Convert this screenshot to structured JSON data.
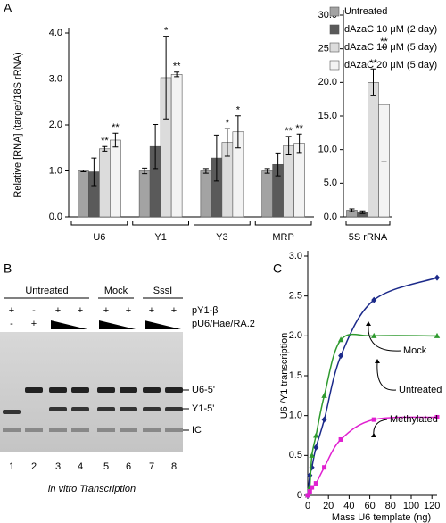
{
  "panel_labels": [
    "A",
    "B",
    "C"
  ],
  "chart_data": [
    {
      "type": "bar",
      "y_label": "Relative [RNA] (target/18S rRNA)",
      "categories": [
        "U6",
        "Y1",
        "Y3",
        "MRP"
      ],
      "ylim": [
        0,
        4.0
      ],
      "yticks": [
        {
          "value": 0,
          "label": "0.0"
        },
        {
          "value": 1,
          "label": "1.0"
        },
        {
          "value": 2,
          "label": "2.0"
        },
        {
          "value": 3,
          "label": "3.0"
        },
        {
          "value": 4,
          "label": "4.0"
        }
      ],
      "series": [
        {
          "name": "Untreated",
          "color": "#a3a3a3",
          "values": [
            1.0,
            1.0,
            1.0,
            1.0
          ],
          "errors": [
            0.02,
            0.06,
            0.05,
            0.05
          ]
        },
        {
          "name": "dAzaC 10 μM (2 day)",
          "color": "#5a5a5a",
          "values": [
            0.98,
            1.53,
            1.28,
            1.14
          ],
          "errors": [
            0.3,
            0.48,
            0.5,
            0.25
          ]
        },
        {
          "name": "dAzaC 10 μM (5 day)",
          "color": "#dcdcdc",
          "values": [
            1.48,
            3.03,
            1.62,
            1.55
          ],
          "errors": [
            0.05,
            0.9,
            0.3,
            0.2
          ],
          "annotations": [
            "**",
            "*",
            "*",
            "**"
          ]
        },
        {
          "name": "dAzaC 20 μM (5 day)",
          "color": "#f3f3f3",
          "values": [
            1.67,
            3.1,
            1.85,
            1.6
          ],
          "errors": [
            0.15,
            0.05,
            0.35,
            0.2
          ],
          "annotations": [
            "**",
            "**",
            "*",
            "**"
          ]
        }
      ]
    },
    {
      "type": "bar",
      "categories": [
        "5S rRNA"
      ],
      "ylim": [
        0,
        30.0
      ],
      "yticks": [
        {
          "value": 0,
          "label": "0.0"
        },
        {
          "value": 5,
          "label": "5.0"
        },
        {
          "value": 10,
          "label": "10.0"
        },
        {
          "value": 15,
          "label": "15.0"
        },
        {
          "value": 20,
          "label": "20.0"
        },
        {
          "value": 25,
          "label": "25.0"
        },
        {
          "value": 30,
          "label": "30.0"
        }
      ],
      "series": [
        {
          "color": "#a3a3a3",
          "values": [
            1.0
          ],
          "errors": [
            0.2
          ]
        },
        {
          "color": "#5a5a5a",
          "values": [
            0.7
          ],
          "errors": [
            0.2
          ]
        },
        {
          "color": "#dcdcdc",
          "values": [
            20.0
          ],
          "errors": [
            2.0
          ],
          "annotations": [
            "**"
          ]
        },
        {
          "color": "#f3f3f3",
          "values": [
            16.7
          ],
          "errors": [
            8.5
          ],
          "annotations": [
            "**"
          ]
        }
      ]
    },
    {
      "type": "line",
      "x_label": "Mass U6 template (ng)",
      "y_label": "U6 /Y1 transcription",
      "x": [
        0,
        2,
        4,
        8,
        16,
        32,
        64,
        125
      ],
      "xlim": [
        0,
        125
      ],
      "xticks": [
        0,
        20,
        40,
        60,
        80,
        100,
        120
      ],
      "ylim": [
        0,
        3.0
      ],
      "yticks": [
        0,
        0.5,
        {
          "value": 1,
          "label": "1.0"
        },
        1.5,
        {
          "value": 2,
          "label": "2.0"
        },
        2.5,
        {
          "value": 3,
          "label": "3.0"
        }
      ],
      "series": [
        {
          "name": "Untreated",
          "color": "#1c2a8a",
          "marker": "diamond",
          "values": [
            0,
            0.25,
            0.35,
            0.6,
            0.95,
            1.75,
            2.45,
            2.73
          ]
        },
        {
          "name": "Mock",
          "color": "#2e9a2e",
          "marker": "triangle",
          "values": [
            0,
            0.1,
            0.5,
            0.75,
            1.25,
            1.95,
            2.0,
            2.0
          ]
        },
        {
          "name": "Methylated",
          "color": "#e020d0",
          "marker": "square",
          "values": [
            0,
            0.05,
            0.1,
            0.15,
            0.35,
            0.7,
            0.95,
            0.98
          ]
        }
      ]
    }
  ],
  "gel": {
    "groups": [
      "Untreated",
      "Mock",
      "SssI"
    ],
    "rows": [
      {
        "label": "pY1-β",
        "marks": [
          "+",
          "-",
          "+",
          "+",
          "+",
          "+",
          "+",
          "+"
        ]
      },
      {
        "label": "pU6/Hae/RA.2",
        "marks": [
          "-",
          "+"
        ]
      }
    ],
    "bands": [
      "U6-5'",
      "Y1-5'",
      "IC"
    ],
    "lanes": [
      "1",
      "2",
      "3",
      "4",
      "5",
      "6",
      "7",
      "8"
    ],
    "caption": "in vitro Transcription"
  }
}
